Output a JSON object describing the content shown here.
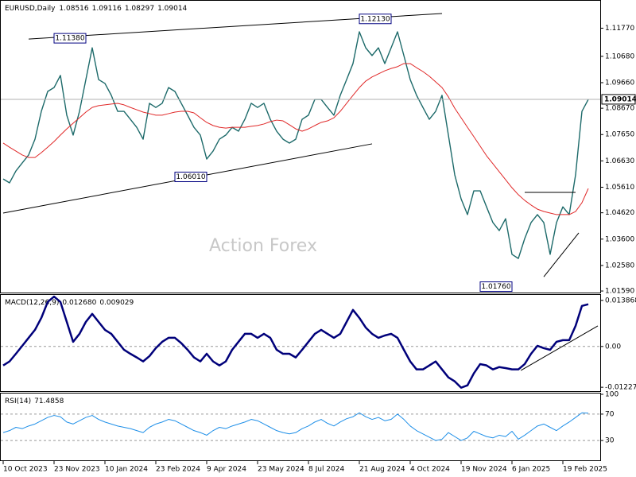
{
  "chart_data": [
    {
      "type": "line",
      "title": "EURUSD,Daily",
      "quote": [
        1.08516,
        1.09116,
        1.08297,
        1.09014
      ],
      "watermark": "Action Forex",
      "categories": [
        "10 Oct 2023",
        null,
        null,
        null,
        null,
        null,
        null,
        null,
        "23 Nov 2023",
        null,
        null,
        null,
        null,
        null,
        null,
        null,
        "10 Jan 2024",
        null,
        null,
        null,
        null,
        null,
        null,
        null,
        "23 Feb 2024",
        null,
        null,
        null,
        null,
        null,
        null,
        null,
        "9 Apr 2024",
        null,
        null,
        null,
        null,
        null,
        null,
        null,
        "23 May 2024",
        null,
        null,
        null,
        null,
        null,
        null,
        null,
        "8 Jul 2024",
        null,
        null,
        null,
        null,
        null,
        null,
        null,
        "21 Aug 2024",
        null,
        null,
        null,
        null,
        null,
        null,
        null,
        "4 Oct 2024",
        null,
        null,
        null,
        null,
        null,
        null,
        null,
        "19 Nov 2024",
        null,
        null,
        null,
        null,
        null,
        null,
        null,
        "6 Jan 2025",
        null,
        null,
        null,
        null,
        null,
        null,
        null,
        "19 Feb 2025",
        null,
        null,
        null,
        null
      ],
      "series": [
        {
          "color": "#1d6a6a",
          "values": [
            1.0593,
            1.0578,
            1.0624,
            1.0655,
            1.0686,
            1.0747,
            1.0855,
            1.0932,
            1.0947,
            1.0994,
            1.084,
            1.0763,
            1.0855,
            1.0978,
            1.1101,
            1.0978,
            1.0963,
            1.0917,
            1.0855,
            1.0855,
            1.0824,
            1.0793,
            1.0747,
            1.0886,
            1.087,
            1.0886,
            1.0947,
            1.0932,
            1.0886,
            1.084,
            1.0793,
            1.0763,
            1.067,
            1.0701,
            1.0747,
            1.0763,
            1.0793,
            1.0778,
            1.0824,
            1.0886,
            1.087,
            1.0886,
            1.0824,
            1.0778,
            1.0747,
            1.0732,
            1.0747,
            1.0824,
            1.084,
            1.0901,
            1.0901,
            1.087,
            1.084,
            1.0917,
            1.0978,
            1.104,
            1.1163,
            1.1101,
            1.1071,
            1.1101,
            1.104,
            1.1101,
            1.1163,
            1.1071,
            1.0978,
            1.0917,
            1.087,
            1.0824,
            1.0855,
            1.0917,
            1.0763,
            1.0609,
            1.0516,
            1.0455,
            1.0547,
            1.0547,
            1.0485,
            1.0424,
            1.0393,
            1.0439,
            1.0301,
            1.0285,
            1.0362,
            1.0424,
            1.0455,
            1.0424,
            1.0301,
            1.0424,
            1.0485,
            1.0455,
            1.0609,
            1.0855,
            1.0901
          ]
        },
        {
          "color": "#e02828",
          "values": [
            1.0732,
            1.0716,
            1.0701,
            1.0686,
            1.0676,
            1.0676,
            1.0695,
            1.0716,
            1.0738,
            1.0763,
            1.0787,
            1.0809,
            1.083,
            1.0852,
            1.087,
            1.0877,
            1.088,
            1.0883,
            1.0886,
            1.088,
            1.087,
            1.0861,
            1.0852,
            1.0846,
            1.084,
            1.084,
            1.0846,
            1.0852,
            1.0855,
            1.0855,
            1.0849,
            1.083,
            1.0812,
            1.08,
            1.0793,
            1.079,
            1.0793,
            1.0793,
            1.0793,
            1.0797,
            1.08,
            1.0806,
            1.0815,
            1.0821,
            1.0818,
            1.0803,
            1.0787,
            1.0778,
            1.0787,
            1.08,
            1.0812,
            1.0818,
            1.083,
            1.0855,
            1.0886,
            1.0917,
            1.0947,
            1.0972,
            1.0988,
            1.1,
            1.1012,
            1.1021,
            1.1028,
            1.104,
            1.104,
            1.1024,
            1.1009,
            1.0991,
            1.0969,
            1.0947,
            1.0911,
            1.0867,
            1.083,
            1.0793,
            1.0757,
            1.072,
            1.0683,
            1.0652,
            1.0621,
            1.059,
            1.0559,
            1.0532,
            1.051,
            1.0492,
            1.0476,
            1.0467,
            1.0461,
            1.0455,
            1.0455,
            1.0455,
            1.0467,
            1.0501,
            1.0556
          ]
        }
      ],
      "ylim": [
        1.0153,
        1.128
      ],
      "yticks": [
        {
          "value": 1.1177,
          "label": "1.11770"
        },
        {
          "value": 1.1068,
          "label": "1.10680"
        },
        {
          "value": 1.0966,
          "label": "1.09660"
        },
        {
          "value": 1.0867,
          "label": "1.08670"
        },
        {
          "value": 1.0765,
          "label": "1.07650"
        },
        {
          "value": 1.0663,
          "label": "1.06630"
        },
        {
          "value": 1.0561,
          "label": "1.05610"
        },
        {
          "value": 1.0462,
          "label": "1.04620"
        },
        {
          "value": 1.036,
          "label": "1.03600"
        },
        {
          "value": 1.0258,
          "label": "1.02580"
        },
        {
          "value": 1.0159,
          "label": "1.01590"
        }
      ],
      "trendlines": [
        {
          "x": [
            4,
            69
          ],
          "y": [
            1.1135,
            1.1234
          ]
        },
        {
          "x": [
            0,
            58
          ],
          "y": [
            1.0461,
            1.0729
          ]
        },
        {
          "x": [
            82,
            90
          ],
          "y": [
            1.0541,
            1.0541
          ]
        },
        {
          "x": [
            85,
            90.5
          ],
          "y": [
            1.0214,
            1.0384
          ]
        }
      ],
      "annotations": [
        {
          "text": "1.11380",
          "x": 8,
          "y": 1.1138
        },
        {
          "text": "1.12130",
          "x": 56,
          "y": 1.1213
        },
        {
          "text": "1.06010",
          "x": 27,
          "y": 1.0601
        },
        {
          "text": "1.01760",
          "x": 75,
          "y": 1.0176
        }
      ]
    },
    {
      "type": "line",
      "title": "MACD(12,26,9)",
      "readout": [
        {
          "value": 0.01268,
          "label": "0.012680"
        },
        0.009029
      ],
      "series": [
        {
          "color": "#00007a",
          "values": [
            -0.0057,
            -0.0045,
            -0.0022,
            0.0002,
            0.0026,
            0.005,
            0.0086,
            0.0134,
            0.015,
            0.0134,
            0.0074,
            0.0014,
            0.0038,
            0.0074,
            0.0098,
            0.0074,
            0.005,
            0.0038,
            0.0014,
            -0.001,
            -0.0022,
            -0.0033,
            -0.0045,
            -0.0029,
            -0.0005,
            0.0014,
            0.0026,
            0.0026,
            0.001,
            -0.001,
            -0.0033,
            -0.0045,
            -0.0022,
            -0.0045,
            -0.0057,
            -0.0045,
            -0.001,
            0.0014,
            0.0038,
            0.0038,
            0.0026,
            0.0038,
            0.0026,
            -0.001,
            -0.0022,
            -0.0022,
            -0.0033,
            -0.001,
            0.0014,
            0.0038,
            0.005,
            0.0038,
            0.0026,
            0.0038,
            0.0074,
            0.011,
            0.0086,
            0.0057,
            0.0038,
            0.0026,
            0.0033,
            0.0038,
            0.0026,
            -0.001,
            -0.0045,
            -0.0069,
            -0.0069,
            -0.0057,
            -0.0045,
            -0.0069,
            -0.0093,
            -0.0105,
            -0.0124,
            -0.0117,
            -0.0081,
            -0.0053,
            -0.0057,
            -0.0069,
            -0.0062,
            -0.0065,
            -0.0069,
            -0.0069,
            -0.0053,
            -0.0022,
            0.0002,
            -0.0005,
            -0.001,
            0.0014,
            0.0019,
            0.0019,
            0.0062,
            0.0122,
            0.0127
          ]
        }
      ],
      "ylim": [
        -0.0132,
        0.0155
      ],
      "yticks": [
        0.013868,
        {
          "value": 0,
          "label": "0.00"
        },
        -0.012275
      ],
      "levels": [
        0
      ],
      "trendlines": [
        {
          "x": [
            81.4,
            93.5
          ],
          "y": [
            -0.0072,
            0.0062
          ]
        }
      ]
    },
    {
      "type": "line",
      "title": "RSI(14)",
      "readout": [
        71.4858
      ],
      "series": [
        {
          "color": "#1e8fe8",
          "values": [
            42,
            45,
            50,
            48,
            52,
            55,
            60,
            65,
            68,
            66,
            58,
            55,
            60,
            65,
            68,
            62,
            58,
            55,
            52,
            50,
            48,
            45,
            42,
            50,
            55,
            58,
            62,
            60,
            55,
            50,
            45,
            42,
            38,
            45,
            50,
            48,
            52,
            55,
            58,
            62,
            60,
            55,
            50,
            45,
            42,
            40,
            42,
            48,
            52,
            58,
            62,
            56,
            52,
            58,
            63,
            66,
            72,
            66,
            62,
            65,
            60,
            62,
            70,
            62,
            52,
            45,
            40,
            35,
            30,
            32,
            42,
            36,
            30,
            34,
            44,
            40,
            36,
            34,
            38,
            36,
            44,
            32,
            38,
            45,
            52,
            55,
            50,
            45,
            52,
            58,
            65,
            72,
            71.5
          ]
        }
      ],
      "ylim": [
        0,
        100
      ],
      "yticks": [
        100,
        70,
        30
      ],
      "levels": [
        70,
        30
      ]
    }
  ]
}
